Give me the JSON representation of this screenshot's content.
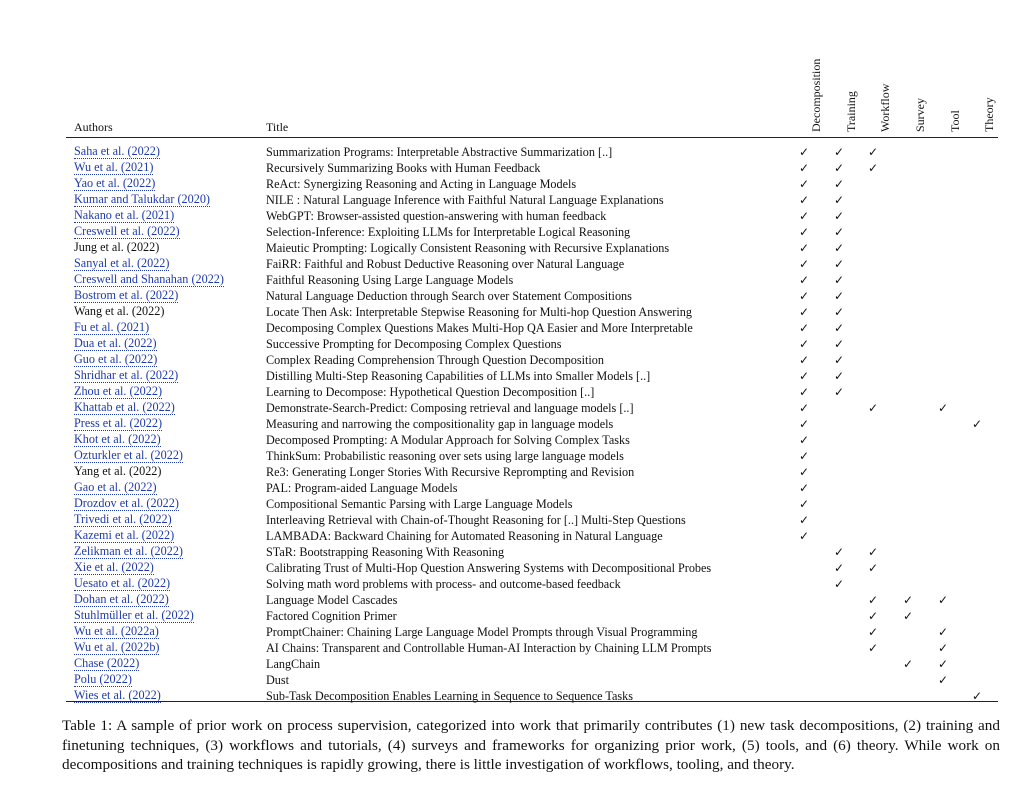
{
  "header": {
    "authors": "Authors",
    "title": "Title",
    "columns": [
      "Decomposition",
      "Training",
      "Workflow",
      "Survey",
      "Tool",
      "Theory"
    ]
  },
  "check_symbol": "✓",
  "rows": [
    {
      "author": "Saha et al. (2022)",
      "title": "Summarization Programs: Interpretable Abstractive Summarization [..]",
      "checks": [
        1,
        1,
        1,
        0,
        0,
        0
      ],
      "link": true
    },
    {
      "author": "Wu et al. (2021)",
      "title": "Recursively Summarizing Books with Human Feedback",
      "checks": [
        1,
        1,
        1,
        0,
        0,
        0
      ],
      "link": true
    },
    {
      "author": "Yao et al. (2022)",
      "title": "ReAct: Synergizing Reasoning and Acting in Language Models",
      "checks": [
        1,
        1,
        0,
        0,
        0,
        0
      ],
      "link": true
    },
    {
      "author": "Kumar and Talukdar (2020)",
      "title": "NILE : Natural Language Inference with Faithful Natural Language Explanations",
      "checks": [
        1,
        1,
        0,
        0,
        0,
        0
      ],
      "link": true
    },
    {
      "author": "Nakano et al. (2021)",
      "title": "WebGPT: Browser-assisted question-answering with human feedback",
      "checks": [
        1,
        1,
        0,
        0,
        0,
        0
      ],
      "link": true
    },
    {
      "author": "Creswell et al. (2022)",
      "title": "Selection-Inference: Exploiting LLMs for Interpretable Logical Reasoning",
      "checks": [
        1,
        1,
        0,
        0,
        0,
        0
      ],
      "link": true
    },
    {
      "author": "Jung et al. (2022)",
      "title": "Maieutic Prompting: Logically Consistent Reasoning with Recursive Explanations",
      "checks": [
        1,
        1,
        0,
        0,
        0,
        0
      ],
      "link": false
    },
    {
      "author": "Sanyal et al. (2022)",
      "title": "FaiRR: Faithful and Robust Deductive Reasoning over Natural Language",
      "checks": [
        1,
        1,
        0,
        0,
        0,
        0
      ],
      "link": true
    },
    {
      "author": "Creswell and Shanahan (2022)",
      "title": "Faithful Reasoning Using Large Language Models",
      "checks": [
        1,
        1,
        0,
        0,
        0,
        0
      ],
      "link": true
    },
    {
      "author": "Bostrom et al. (2022)",
      "title": "Natural Language Deduction through Search over Statement Compositions",
      "checks": [
        1,
        1,
        0,
        0,
        0,
        0
      ],
      "link": true
    },
    {
      "author": "Wang et al. (2022)",
      "title": "Locate Then Ask: Interpretable Stepwise Reasoning for Multi-hop Question Answering",
      "checks": [
        1,
        1,
        0,
        0,
        0,
        0
      ],
      "link": false
    },
    {
      "author": "Fu et al. (2021)",
      "title": "Decomposing Complex Questions Makes Multi-Hop QA Easier and More Interpretable",
      "checks": [
        1,
        1,
        0,
        0,
        0,
        0
      ],
      "link": true
    },
    {
      "author": "Dua et al. (2022)",
      "title": "Successive Prompting for Decomposing Complex Questions",
      "checks": [
        1,
        1,
        0,
        0,
        0,
        0
      ],
      "link": true
    },
    {
      "author": "Guo et al. (2022)",
      "title": "Complex Reading Comprehension Through Question Decomposition",
      "checks": [
        1,
        1,
        0,
        0,
        0,
        0
      ],
      "link": true
    },
    {
      "author": "Shridhar et al. (2022)",
      "title": "Distilling Multi-Step Reasoning Capabilities of LLMs into Smaller Models [..]",
      "checks": [
        1,
        1,
        0,
        0,
        0,
        0
      ],
      "link": true
    },
    {
      "author": "Zhou et al. (2022)",
      "title": "Learning to Decompose: Hypothetical Question Decomposition [..]",
      "checks": [
        1,
        1,
        0,
        0,
        0,
        0
      ],
      "link": true
    },
    {
      "author": "Khattab et al. (2022)",
      "title": "Demonstrate-Search-Predict: Composing retrieval and language models [..]",
      "checks": [
        1,
        0,
        1,
        0,
        1,
        0
      ],
      "link": true
    },
    {
      "author": "Press et al. (2022)",
      "title": "Measuring and narrowing the compositionality gap in language models",
      "checks": [
        1,
        0,
        0,
        0,
        0,
        1
      ],
      "link": true
    },
    {
      "author": "Khot et al. (2022)",
      "title": "Decomposed Prompting: A Modular Approach for Solving Complex Tasks",
      "checks": [
        1,
        0,
        0,
        0,
        0,
        0
      ],
      "link": true
    },
    {
      "author": "Ozturkler et al. (2022)",
      "title": "ThinkSum: Probabilistic reasoning over sets using large language models",
      "checks": [
        1,
        0,
        0,
        0,
        0,
        0
      ],
      "link": true
    },
    {
      "author": "Yang et al. (2022)",
      "title": "Re3: Generating Longer Stories With Recursive Reprompting and Revision",
      "checks": [
        1,
        0,
        0,
        0,
        0,
        0
      ],
      "link": false
    },
    {
      "author": "Gao et al. (2022)",
      "title": "PAL: Program-aided Language Models",
      "checks": [
        1,
        0,
        0,
        0,
        0,
        0
      ],
      "link": true
    },
    {
      "author": "Drozdov et al. (2022)",
      "title": "Compositional Semantic Parsing with Large Language Models",
      "checks": [
        1,
        0,
        0,
        0,
        0,
        0
      ],
      "link": true
    },
    {
      "author": "Trivedi et al. (2022)",
      "title": "Interleaving Retrieval with Chain-of-Thought Reasoning for [..] Multi-Step Questions",
      "checks": [
        1,
        0,
        0,
        0,
        0,
        0
      ],
      "link": true
    },
    {
      "author": "Kazemi et al. (2022)",
      "title": "LAMBADA: Backward Chaining for Automated Reasoning in Natural Language",
      "checks": [
        1,
        0,
        0,
        0,
        0,
        0
      ],
      "link": true
    },
    {
      "author": "Zelikman et al. (2022)",
      "title": "STaR: Bootstrapping Reasoning With Reasoning",
      "checks": [
        0,
        1,
        1,
        0,
        0,
        0
      ],
      "link": true
    },
    {
      "author": "Xie et al. (2022)",
      "title": "Calibrating Trust of Multi-Hop Question Answering Systems with Decompositional Probes",
      "checks": [
        0,
        1,
        1,
        0,
        0,
        0
      ],
      "link": true
    },
    {
      "author": "Uesato et al. (2022)",
      "title": "Solving math word problems with process- and outcome-based feedback",
      "checks": [
        0,
        1,
        0,
        0,
        0,
        0
      ],
      "link": true
    },
    {
      "author": "Dohan et al. (2022)",
      "title": "Language Model Cascades",
      "checks": [
        0,
        0,
        1,
        1,
        1,
        0
      ],
      "link": true
    },
    {
      "author": "Stuhlmüller et al. (2022)",
      "title": "Factored Cognition Primer",
      "checks": [
        0,
        0,
        1,
        1,
        0,
        0
      ],
      "link": true
    },
    {
      "author": "Wu et al. (2022a)",
      "title": "PromptChainer: Chaining Large Language Model Prompts through Visual Programming",
      "checks": [
        0,
        0,
        1,
        0,
        1,
        0
      ],
      "link": true
    },
    {
      "author": "Wu et al. (2022b)",
      "title": "AI Chains: Transparent and Controllable Human-AI Interaction by Chaining LLM Prompts",
      "checks": [
        0,
        0,
        1,
        0,
        1,
        0
      ],
      "link": true
    },
    {
      "author": "Chase (2022)",
      "title": "LangChain",
      "checks": [
        0,
        0,
        0,
        1,
        1,
        0
      ],
      "link": true
    },
    {
      "author": "Polu (2022)",
      "title": "Dust",
      "checks": [
        0,
        0,
        0,
        0,
        1,
        0
      ],
      "link": true
    },
    {
      "author": "Wies et al. (2022)",
      "title": "Sub-Task Decomposition Enables Learning in Sequence to Sequence Tasks",
      "checks": [
        0,
        0,
        0,
        0,
        0,
        1
      ],
      "link": true
    }
  ],
  "caption": "Table 1: A sample of prior work on process supervision, categorized into work that primarily contributes (1) new task decompositions, (2) training and finetuning techniques, (3) workflows and tutorials, (4) surveys and frameworks for organizing prior work, (5) tools, and (6) theory. While work on decompositions and training techniques is rapidly growing, there is little investigation of workflows, tooling, and theory."
}
